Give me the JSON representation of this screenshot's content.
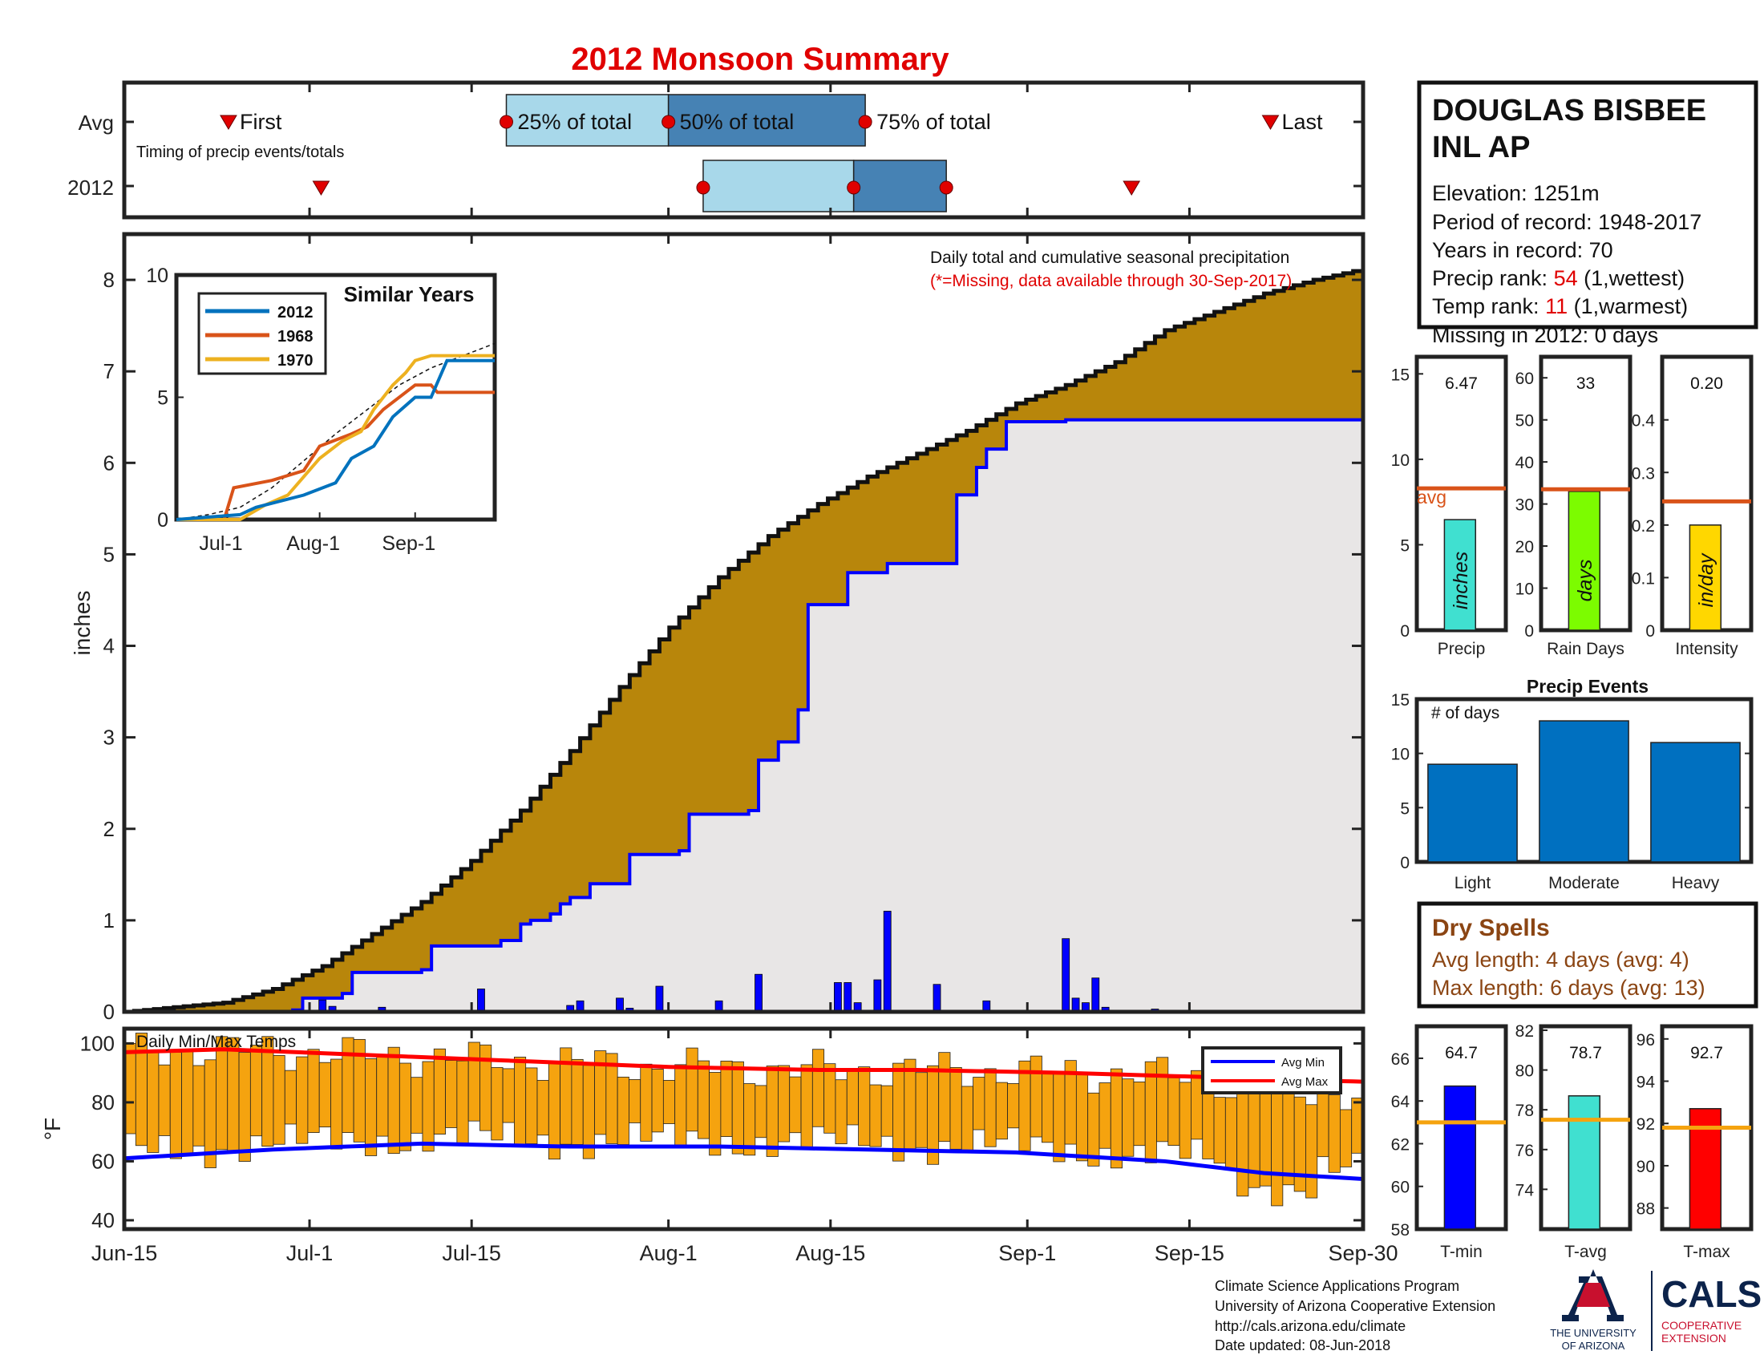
{
  "title": "2012 Monsoon Summary",
  "station": {
    "name_line1": "DOUGLAS BISBEE",
    "name_line2": "INL AP",
    "elevation": "Elevation: 1251m",
    "period": "Period of record: 1948-2017",
    "years": "Years in record: 70",
    "precip_rank_label": "Precip rank: ",
    "precip_rank_value": "54",
    "precip_rank_suffix": " (1,wettest)",
    "temp_rank_label": "Temp rank: ",
    "temp_rank_value": "11",
    "temp_rank_suffix": " (1,warmest)",
    "missing": "Missing in 2012: 0 days"
  },
  "colors": {
    "red": "#e00000",
    "brown": "#b8860b",
    "blue": "#0000ff",
    "light_blue_box": "#a8d8ea",
    "dark_blue_box": "#4682b4",
    "bar_blue": "#0070c0",
    "orange": "#f5a30f",
    "dry_spell_brown": "#8b4513"
  },
  "footer": {
    "line1": "Climate Science Applications Program",
    "line2": "University of Arizona Cooperative Extension",
    "line3": "http://cals.arizona.edu/climate",
    "line4": " Date updated: 08-Jun-2018",
    "logo_ua_line1": "THE UNIVERSITY",
    "logo_ua_line2": "OF ARIZONA",
    "logo_cals": "CALS",
    "logo_coop1": "COOPERATIVE",
    "logo_coop2": "EXTENSION"
  },
  "chart_data": [
    {
      "id": "timing",
      "type": "box",
      "ylabels": [
        "Avg",
        "2012"
      ],
      "annotation": "Timing of precip events/totals",
      "labels": {
        "first": "First",
        "p25": "25% of total",
        "p50": "50% of total",
        "p75": "75% of total",
        "last": "Last"
      },
      "avg": {
        "first": "Jun-24",
        "p25": "Jul-18",
        "p50": "Aug-1",
        "p75": "Aug-18",
        "last": "Sep-22"
      },
      "y2012": {
        "first": "Jul-2",
        "p25": "Aug-4",
        "p50": "Aug-17",
        "p75": "Aug-25",
        "last": "Sep-10"
      }
    },
    {
      "id": "cumulative",
      "type": "area",
      "annotation": "Daily total and cumulative seasonal precipitation",
      "annotation2": "(*=Missing, data available through 30-Sep-2017)",
      "ylabel": "inches",
      "ylim": [
        0,
        8.5
      ],
      "yticks": [
        "0",
        "1",
        "2",
        "3",
        "4",
        "5",
        "6",
        "7",
        "8"
      ],
      "xlim": [
        "Jun-15",
        "Sep-30"
      ],
      "series": [
        {
          "name": "Avg cumulative",
          "points": [
            [
              0,
              0
            ],
            [
              10,
              0.1
            ],
            [
              15,
              0.25
            ],
            [
              20,
              0.5
            ],
            [
              25,
              0.85
            ],
            [
              30,
              1.2
            ],
            [
              35,
              1.65
            ],
            [
              40,
              2.2
            ],
            [
              45,
              2.85
            ],
            [
              50,
              3.55
            ],
            [
              55,
              4.2
            ],
            [
              60,
              4.75
            ],
            [
              65,
              5.2
            ],
            [
              70,
              5.55
            ],
            [
              75,
              5.85
            ],
            [
              80,
              6.1
            ],
            [
              85,
              6.35
            ],
            [
              90,
              6.65
            ],
            [
              95,
              6.85
            ],
            [
              100,
              7.1
            ],
            [
              105,
              7.45
            ],
            [
              110,
              7.65
            ],
            [
              115,
              7.85
            ],
            [
              120,
              8.0
            ],
            [
              125,
              8.12
            ]
          ]
        },
        {
          "name": "2012 cumulative",
          "points": [
            [
              0,
              0
            ],
            [
              17,
              0.02
            ],
            [
              18,
              0.15
            ],
            [
              22,
              0.2
            ],
            [
              23,
              0.43
            ],
            [
              30,
              0.46
            ],
            [
              31,
              0.72
            ],
            [
              38,
              0.78
            ],
            [
              40,
              0.96
            ],
            [
              41,
              1.0
            ],
            [
              43,
              1.07
            ],
            [
              44,
              1.18
            ],
            [
              45,
              1.25
            ],
            [
              47,
              1.4
            ],
            [
              51,
              1.72
            ],
            [
              56,
              1.76
            ],
            [
              57,
              2.16
            ],
            [
              63,
              2.2
            ],
            [
              64,
              2.75
            ],
            [
              66,
              2.95
            ],
            [
              68,
              3.3
            ],
            [
              69,
              4.45
            ],
            [
              73,
              4.8
            ],
            [
              77,
              4.9
            ],
            [
              84,
              5.65
            ],
            [
              86,
              5.95
            ],
            [
              87,
              6.15
            ],
            [
              89,
              6.45
            ],
            [
              95,
              6.47
            ],
            [
              125,
              6.47
            ]
          ]
        },
        {
          "name": "Daily precip",
          "points": [
            [
              20,
              0.13
            ],
            [
              21,
              0.06
            ],
            [
              26,
              0.05
            ],
            [
              36,
              0.25
            ],
            [
              45,
              0.07
            ],
            [
              46,
              0.12
            ],
            [
              50,
              0.15
            ],
            [
              51,
              0.04
            ],
            [
              54,
              0.28
            ],
            [
              60,
              0.12
            ],
            [
              64,
              0.41
            ],
            [
              72,
              0.32
            ],
            [
              73,
              0.32
            ],
            [
              74,
              0.1
            ],
            [
              76,
              0.35
            ],
            [
              77,
              1.1
            ],
            [
              82,
              0.3
            ],
            [
              87,
              0.12
            ],
            [
              95,
              0.8
            ],
            [
              96,
              0.15
            ],
            [
              97,
              0.1
            ],
            [
              98,
              0.37
            ],
            [
              99,
              0.05
            ],
            [
              104,
              0.03
            ]
          ]
        }
      ]
    },
    {
      "id": "similar-years",
      "type": "line",
      "title": "Similar Years",
      "ylim": [
        0,
        10
      ],
      "yticks": [
        "0",
        "5",
        "10"
      ],
      "xticks": [
        "Jul-1",
        "Aug-1",
        "Sep-1"
      ],
      "series": [
        {
          "name": "2012",
          "color": "#0072bd",
          "points": [
            [
              0,
              0
            ],
            [
              20,
              0.2
            ],
            [
              25,
              0.5
            ],
            [
              40,
              1
            ],
            [
              50,
              1.5
            ],
            [
              55,
              2.5
            ],
            [
              62,
              3
            ],
            [
              68,
              4.2
            ],
            [
              75,
              5
            ],
            [
              80,
              5
            ],
            [
              85,
              6.5
            ],
            [
              100,
              6.5
            ]
          ]
        },
        {
          "name": "1968",
          "color": "#d95319",
          "points": [
            [
              0,
              0
            ],
            [
              15,
              0
            ],
            [
              18,
              1.3
            ],
            [
              30,
              1.6
            ],
            [
              40,
              2
            ],
            [
              45,
              3
            ],
            [
              55,
              3.5
            ],
            [
              60,
              3.8
            ],
            [
              65,
              4.5
            ],
            [
              75,
              5.5
            ],
            [
              80,
              5.5
            ],
            [
              82,
              5.2
            ],
            [
              100,
              5.2
            ]
          ]
        },
        {
          "name": "1970",
          "color": "#edb120",
          "points": [
            [
              0,
              0
            ],
            [
              20,
              0
            ],
            [
              28,
              0.6
            ],
            [
              35,
              1
            ],
            [
              45,
              2.5
            ],
            [
              52,
              3.2
            ],
            [
              58,
              3.6
            ],
            [
              62,
              4.5
            ],
            [
              65,
              5
            ],
            [
              68,
              5.5
            ],
            [
              72,
              6
            ],
            [
              75,
              6.5
            ],
            [
              80,
              6.7
            ],
            [
              100,
              6.7
            ]
          ]
        },
        {
          "name": "Avg",
          "points": [
            [
              0,
              0
            ],
            [
              10,
              0.2
            ],
            [
              20,
              0.5
            ],
            [
              30,
              1.3
            ],
            [
              40,
              2.4
            ],
            [
              50,
              3.5
            ],
            [
              60,
              4.5
            ],
            [
              70,
              5.5
            ],
            [
              80,
              6.2
            ],
            [
              90,
              6.7
            ],
            [
              100,
              7.2
            ]
          ]
        }
      ]
    },
    {
      "id": "bars-precip",
      "type": "bar",
      "categories": [
        "Precip"
      ],
      "values": [
        6.47
      ],
      "value_label": "6.47",
      "inner_label": "inches",
      "avg": 8.3,
      "avg_label": "avg",
      "ylim": [
        0,
        16
      ],
      "yticks": [
        "0",
        "5",
        "10",
        "15"
      ]
    },
    {
      "id": "bars-raindays",
      "type": "bar",
      "categories": [
        "Rain Days"
      ],
      "values": [
        33
      ],
      "value_label": "33",
      "inner_label": "days",
      "avg": 33.5,
      "ylim": [
        0,
        65
      ],
      "yticks": [
        "0",
        "10",
        "20",
        "30",
        "40",
        "50",
        "60"
      ]
    },
    {
      "id": "bars-intensity",
      "type": "bar",
      "categories": [
        "Intensity"
      ],
      "values": [
        0.2
      ],
      "value_label": "0.20",
      "inner_label": "in/day",
      "avg": 0.245,
      "ylim": [
        0,
        0.52
      ],
      "yticks": [
        "0",
        "0.1",
        "0.2",
        "0.3",
        "0.4"
      ]
    },
    {
      "id": "precip-events",
      "type": "bar",
      "title": "Precip Events",
      "annotation": "# of days",
      "categories": [
        "Light",
        "Moderate",
        "Heavy"
      ],
      "values": [
        9,
        13,
        11
      ],
      "ylim": [
        0,
        15
      ],
      "yticks": [
        "0",
        "5",
        "10",
        "15"
      ]
    },
    {
      "id": "dry-spells",
      "type": "table",
      "title": "Dry Spells",
      "avg_length": "Avg length: 4 days (avg: 4)",
      "max_length": "Max length: 6 days (avg: 13)"
    },
    {
      "id": "daily-temps",
      "type": "bar",
      "annotation": "Daily Min/Max Temps",
      "ylabel": "°F",
      "ylim": [
        37,
        105
      ],
      "yticks": [
        "40",
        "60",
        "80",
        "100"
      ],
      "xticks": [
        "Jun-15",
        "Jul-1",
        "Jul-15",
        "Aug-1",
        "Aug-15",
        "Sep-1",
        "Sep-15",
        "Sep-30"
      ],
      "legend": [
        "Avg Min",
        "Avg Max"
      ],
      "avg_min": [
        [
          0,
          61
        ],
        [
          15,
          64
        ],
        [
          30,
          66
        ],
        [
          45,
          65
        ],
        [
          60,
          65
        ],
        [
          75,
          64
        ],
        [
          90,
          63
        ],
        [
          105,
          60
        ],
        [
          115,
          56
        ],
        [
          125,
          54
        ]
      ],
      "avg_max": [
        [
          0,
          97
        ],
        [
          10,
          98
        ],
        [
          25,
          96
        ],
        [
          40,
          94
        ],
        [
          55,
          92
        ],
        [
          70,
          91
        ],
        [
          80,
          91
        ],
        [
          95,
          90
        ],
        [
          105,
          89
        ],
        [
          115,
          88
        ],
        [
          125,
          87
        ]
      ]
    },
    {
      "id": "bars-tmin",
      "type": "bar",
      "categories": [
        "T-min"
      ],
      "values": [
        64.7
      ],
      "value_label": "64.7",
      "avg": 63,
      "ylim": [
        58,
        67.5
      ],
      "yticks": [
        "58",
        "60",
        "62",
        "64",
        "66"
      ]
    },
    {
      "id": "bars-tavg",
      "type": "bar",
      "categories": [
        "T-avg"
      ],
      "values": [
        78.7
      ],
      "value_label": "78.7",
      "avg": 77.5,
      "ylim": [
        72,
        82.2
      ],
      "yticks": [
        "74",
        "76",
        "78",
        "80",
        "82"
      ]
    },
    {
      "id": "bars-tmax",
      "type": "bar",
      "categories": [
        "T-max"
      ],
      "values": [
        92.7
      ],
      "value_label": "92.7",
      "avg": 91.8,
      "ylim": [
        87,
        96.6
      ],
      "yticks": [
        "88",
        "90",
        "92",
        "94",
        "96"
      ]
    }
  ]
}
